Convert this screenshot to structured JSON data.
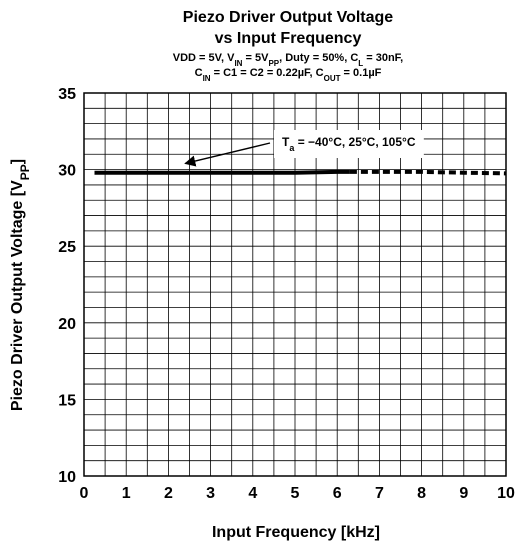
{
  "chart_data": {
    "type": "line",
    "title_line1": "Piezo Driver Output Voltage",
    "title_line2": "vs Input Frequency",
    "subtitle_line1": {
      "p1": "VDD = 5V, V",
      "p1_sub": "IN",
      "p2": " = 5V",
      "p2_sub": "PP",
      "p3": ", Duty = 50%, C",
      "p3_sub": "L",
      "p4": " = 30nF,"
    },
    "subtitle_line2": {
      "p1": "C",
      "p1_sub": "IN",
      "p2": " = C1 = C2 = 0.22µF, C",
      "p2_sub": "OUT",
      "p3": " = 0.1µF"
    },
    "xlabel": "Input Frequency [kHz]",
    "ylabel": {
      "main": "Piezo Driver Output Voltage [V",
      "sub": "PP",
      "end": "]"
    },
    "xlim": [
      0,
      10
    ],
    "ylim": [
      10,
      35
    ],
    "x_ticks": [
      0,
      1,
      2,
      3,
      4,
      5,
      6,
      7,
      8,
      9,
      10
    ],
    "y_ticks": [
      10,
      15,
      20,
      25,
      30,
      35
    ],
    "x_minor_step": 0.5,
    "y_minor_step": 1,
    "grid": true,
    "annotation": {
      "p1": "T",
      "p1_sub": "a",
      "p2": " = −40°C, 25°C, 105°C",
      "arrow_target": [
        2.4,
        30.4
      ]
    },
    "series": [
      {
        "style": "solid",
        "x": [
          0.25,
          1,
          2,
          3,
          4,
          5,
          6,
          6.3
        ],
        "y": [
          29.8,
          29.8,
          29.8,
          29.8,
          29.8,
          29.8,
          29.85,
          29.85
        ]
      },
      {
        "style": "dashed",
        "x": [
          6.3,
          7,
          8,
          9,
          10
        ],
        "y": [
          29.85,
          29.85,
          29.85,
          29.8,
          29.75
        ]
      }
    ],
    "colors": {
      "line": "#000000",
      "grid": "#000000",
      "background": "#ffffff"
    }
  }
}
